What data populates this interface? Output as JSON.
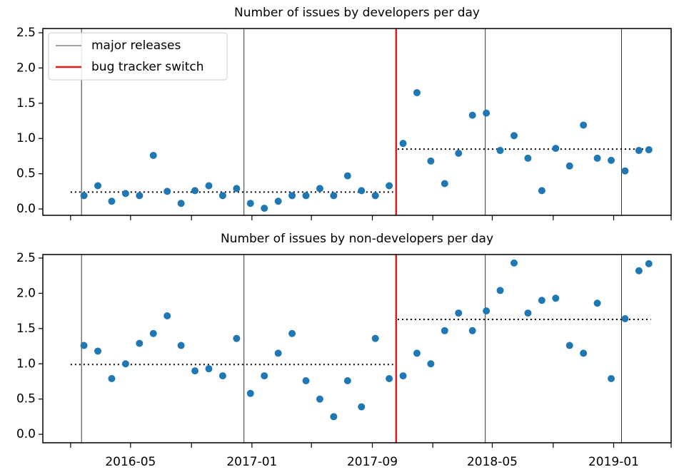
{
  "chart_data": [
    {
      "type": "scatter",
      "title": "Number of issues by developers per day",
      "color": "#1f77b4",
      "x": [
        "2016-01-28",
        "2016-02-25",
        "2016-03-24",
        "2016-04-21",
        "2016-05-19",
        "2016-06-16",
        "2016-07-14",
        "2016-08-11",
        "2016-09-08",
        "2016-10-06",
        "2016-11-03",
        "2016-12-01",
        "2016-12-29",
        "2017-01-26",
        "2017-02-23",
        "2017-03-23",
        "2017-04-20",
        "2017-05-18",
        "2017-06-15",
        "2017-07-13",
        "2017-08-10",
        "2017-09-07",
        "2017-10-05",
        "2017-11-02",
        "2017-11-30",
        "2017-12-28",
        "2018-01-25",
        "2018-02-22",
        "2018-03-22",
        "2018-04-19",
        "2018-05-17",
        "2018-06-14",
        "2018-07-12",
        "2018-08-09",
        "2018-09-06",
        "2018-10-04",
        "2018-11-01",
        "2018-11-29",
        "2018-12-27",
        "2019-01-24",
        "2019-02-21",
        "2019-03-13"
      ],
      "values": [
        0.19,
        0.33,
        0.11,
        0.22,
        0.19,
        0.76,
        0.25,
        0.08,
        0.26,
        0.33,
        0.19,
        0.29,
        0.08,
        0.01,
        0.11,
        0.19,
        0.19,
        0.29,
        0.19,
        0.47,
        0.26,
        0.19,
        0.33,
        0.93,
        1.65,
        0.68,
        0.36,
        0.79,
        1.33,
        1.36,
        0.83,
        1.04,
        0.72,
        0.26,
        0.86,
        0.61,
        1.19,
        0.72,
        0.69,
        0.54,
        0.83,
        0.84
      ],
      "mean_segments": [
        {
          "start": "2016-01-01",
          "end": "2017-10-13",
          "value": 0.24
        },
        {
          "start": "2017-10-22",
          "end": "2019-03-17",
          "value": 0.85
        }
      ],
      "vlines": [
        {
          "name": "major releases",
          "color": "#000000",
          "x": [
            "2016-01-23",
            "2016-12-16",
            "2018-04-17",
            "2019-01-17"
          ]
        },
        {
          "name": "bug tracker switch",
          "color": "#e31a1c",
          "x": [
            "2017-10-19"
          ]
        }
      ],
      "legend": "upper left",
      "xlim": [
        "2015-11-06",
        "2019-04-27"
      ],
      "ylim": [
        -0.09,
        2.56
      ],
      "yticks": [
        {
          "value": 0,
          "label": "0.0"
        },
        0.5,
        {
          "value": 1,
          "label": "1.0"
        },
        1.5,
        {
          "value": 2,
          "label": "2.0"
        },
        2.5
      ]
    },
    {
      "type": "scatter",
      "title": "Number of issues by non-developers per day",
      "color": "#1f77b4",
      "x": [
        "2016-01-28",
        "2016-02-25",
        "2016-03-24",
        "2016-04-21",
        "2016-05-19",
        "2016-06-16",
        "2016-07-14",
        "2016-08-11",
        "2016-09-08",
        "2016-10-06",
        "2016-11-03",
        "2016-12-01",
        "2016-12-29",
        "2017-01-26",
        "2017-02-23",
        "2017-03-23",
        "2017-04-20",
        "2017-05-18",
        "2017-06-15",
        "2017-07-13",
        "2017-08-10",
        "2017-09-07",
        "2017-10-05",
        "2017-11-02",
        "2017-11-30",
        "2017-12-28",
        "2018-01-25",
        "2018-02-22",
        "2018-03-22",
        "2018-04-19",
        "2018-05-17",
        "2018-06-14",
        "2018-07-12",
        "2018-08-09",
        "2018-09-06",
        "2018-10-04",
        "2018-11-01",
        "2018-11-29",
        "2018-12-27",
        "2019-01-24",
        "2019-02-21",
        "2019-03-13"
      ],
      "values": [
        1.26,
        1.18,
        0.79,
        1.0,
        1.29,
        1.43,
        1.68,
        1.26,
        0.9,
        0.93,
        0.83,
        1.36,
        0.58,
        0.83,
        1.15,
        1.43,
        0.76,
        0.5,
        0.25,
        0.76,
        0.39,
        1.36,
        0.79,
        0.83,
        1.15,
        1.0,
        1.47,
        1.72,
        1.47,
        1.75,
        2.04,
        2.43,
        1.72,
        1.9,
        1.93,
        1.26,
        1.15,
        1.86,
        0.79,
        1.64,
        2.32,
        2.42
      ],
      "mean_segments": [
        {
          "start": "2016-01-01",
          "end": "2017-10-13",
          "value": 0.99
        },
        {
          "start": "2017-10-22",
          "end": "2019-03-17",
          "value": 1.63
        }
      ],
      "xlim": [
        "2015-11-06",
        "2019-04-27"
      ],
      "ylim": [
        -0.12,
        2.55
      ],
      "yticks": [
        {
          "value": 0,
          "label": "0.0"
        },
        0.5,
        {
          "value": 1,
          "label": "1.0"
        },
        1.5,
        {
          "value": 2,
          "label": "2.0"
        },
        2.5
      ],
      "xticks": [
        "2016-05",
        "2017-01",
        "2017-09",
        "2018-05",
        "2019-01"
      ],
      "xminor_ticks": [
        "2016-01",
        "2016-09",
        "2017-05",
        "2018-01",
        "2018-09",
        "2019-05"
      ]
    }
  ]
}
